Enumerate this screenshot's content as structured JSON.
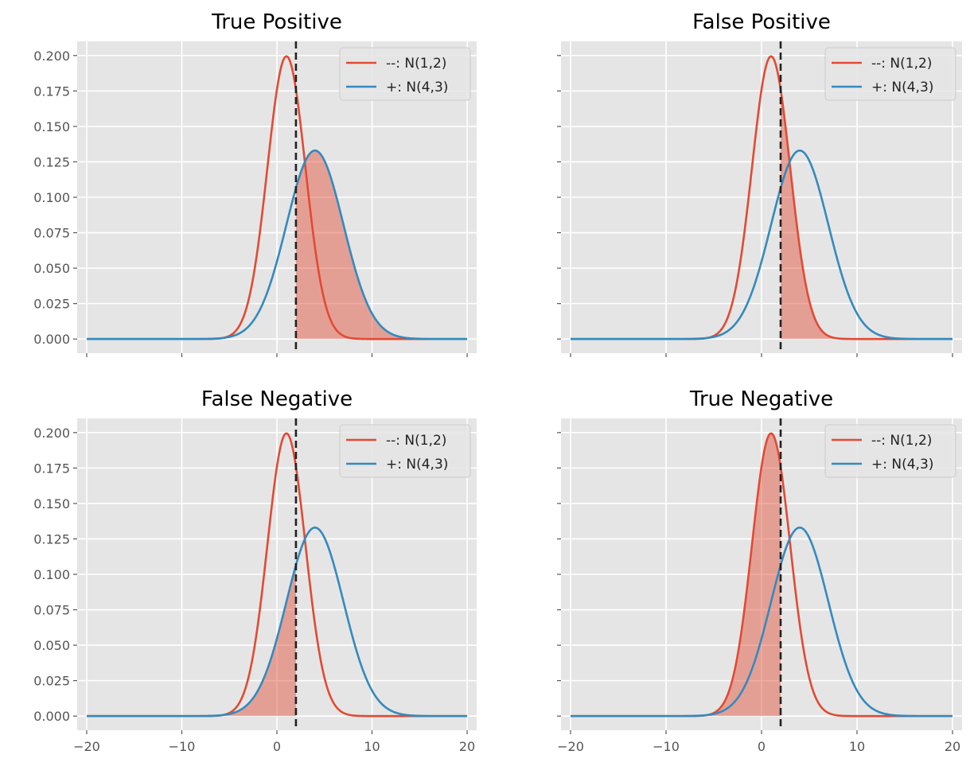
{
  "chart_data": [
    {
      "type": "line",
      "title": "True Positive",
      "shade": {
        "curve": "+",
        "side": "right"
      },
      "threshold": 2,
      "xlim": [
        -21,
        21
      ],
      "ylim": [
        -0.01,
        0.21
      ],
      "xticks": [
        -20,
        -10,
        0,
        10,
        20
      ],
      "yticks": [
        0.0,
        0.025,
        0.05,
        0.075,
        0.1,
        0.125,
        0.15,
        0.175,
        0.2
      ],
      "ytick_labels": [
        "0.000",
        "0.025",
        "0.050",
        "0.075",
        "0.100",
        "0.125",
        "0.150",
        "0.175",
        "0.200"
      ],
      "show_xtick_labels": false,
      "show_ytick_labels": true,
      "series": [
        {
          "name": "--: N(1,2)",
          "mean": 1,
          "sd": 2,
          "color": "#E24A33"
        },
        {
          "name": "+: N(4,3)",
          "mean": 4,
          "sd": 3,
          "color": "#348ABD"
        }
      ],
      "legend": "top-right",
      "grid": true
    },
    {
      "type": "line",
      "title": "False Positive",
      "shade": {
        "curve": "--",
        "side": "right"
      },
      "threshold": 2,
      "xlim": [
        -21,
        21
      ],
      "ylim": [
        -0.01,
        0.21
      ],
      "xticks": [
        -20,
        -10,
        0,
        10,
        20
      ],
      "yticks": [
        0.0,
        0.025,
        0.05,
        0.075,
        0.1,
        0.125,
        0.15,
        0.175,
        0.2
      ],
      "ytick_labels": [
        "0.000",
        "0.025",
        "0.050",
        "0.075",
        "0.100",
        "0.125",
        "0.150",
        "0.175",
        "0.200"
      ],
      "show_xtick_labels": false,
      "show_ytick_labels": false,
      "series": [
        {
          "name": "--: N(1,2)",
          "mean": 1,
          "sd": 2,
          "color": "#E24A33"
        },
        {
          "name": "+: N(4,3)",
          "mean": 4,
          "sd": 3,
          "color": "#348ABD"
        }
      ],
      "legend": "top-right",
      "grid": true
    },
    {
      "type": "line",
      "title": "False Negative",
      "shade": {
        "curve": "+",
        "side": "left"
      },
      "threshold": 2,
      "xlim": [
        -21,
        21
      ],
      "ylim": [
        -0.01,
        0.21
      ],
      "xticks": [
        -20,
        -10,
        0,
        10,
        20
      ],
      "xtick_labels": [
        "−20",
        "−10",
        "0",
        "10",
        "20"
      ],
      "yticks": [
        0.0,
        0.025,
        0.05,
        0.075,
        0.1,
        0.125,
        0.15,
        0.175,
        0.2
      ],
      "ytick_labels": [
        "0.000",
        "0.025",
        "0.050",
        "0.075",
        "0.100",
        "0.125",
        "0.150",
        "0.175",
        "0.200"
      ],
      "show_xtick_labels": true,
      "show_ytick_labels": true,
      "series": [
        {
          "name": "--: N(1,2)",
          "mean": 1,
          "sd": 2,
          "color": "#E24A33"
        },
        {
          "name": "+: N(4,3)",
          "mean": 4,
          "sd": 3,
          "color": "#348ABD"
        }
      ],
      "legend": "top-right",
      "grid": true
    },
    {
      "type": "line",
      "title": "True Negative",
      "shade": {
        "curve": "--",
        "side": "left"
      },
      "threshold": 2,
      "xlim": [
        -21,
        21
      ],
      "ylim": [
        -0.01,
        0.21
      ],
      "xticks": [
        -20,
        -10,
        0,
        10,
        20
      ],
      "xtick_labels": [
        "−20",
        "−10",
        "0",
        "10",
        "20"
      ],
      "yticks": [
        0.0,
        0.025,
        0.05,
        0.075,
        0.1,
        0.125,
        0.15,
        0.175,
        0.2
      ],
      "ytick_labels": [
        "0.000",
        "0.025",
        "0.050",
        "0.075",
        "0.100",
        "0.125",
        "0.150",
        "0.175",
        "0.200"
      ],
      "show_xtick_labels": true,
      "show_ytick_labels": false,
      "series": [
        {
          "name": "--: N(1,2)",
          "mean": 1,
          "sd": 2,
          "color": "#E24A33"
        },
        {
          "name": "+: N(4,3)",
          "mean": 4,
          "sd": 3,
          "color": "#348ABD"
        }
      ],
      "legend": "top-right",
      "grid": true
    }
  ],
  "colors": {
    "axes_background": "#E5E5E5",
    "grid": "#FFFFFF",
    "fill": "#E24A33",
    "threshold_line": "#222222"
  }
}
